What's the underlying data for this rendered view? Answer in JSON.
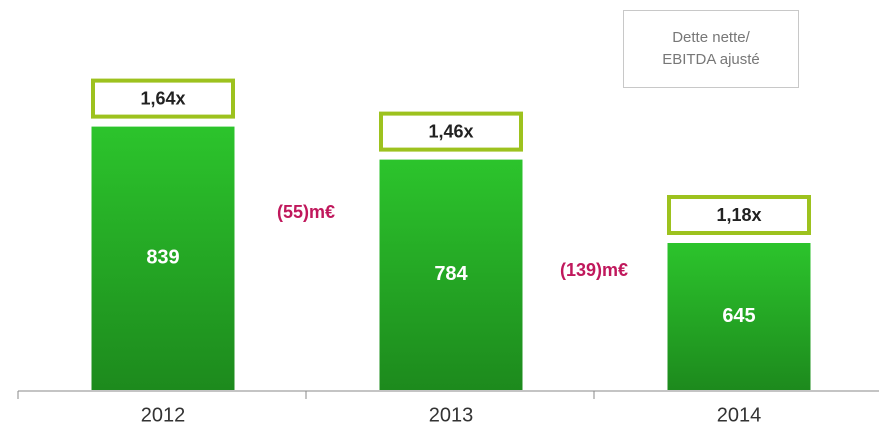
{
  "chart_data": {
    "type": "bar",
    "categories": [
      "2012",
      "2013",
      "2014"
    ],
    "values": [
      839,
      784,
      645
    ],
    "color": "#22b022",
    "ylim": [
      400,
      1000
    ],
    "ratio": {
      "name": "Dette nette/ EBITDA ajusté",
      "color": "#9dc21e",
      "values": [
        1.64,
        1.46,
        1.18
      ],
      "value_labels": [
        "1,64x",
        "1,46x",
        "1,18x"
      ]
    },
    "annotations": [
      "(55)m€",
      "(139)m€"
    ],
    "annotation_color": "#c0185c"
  }
}
